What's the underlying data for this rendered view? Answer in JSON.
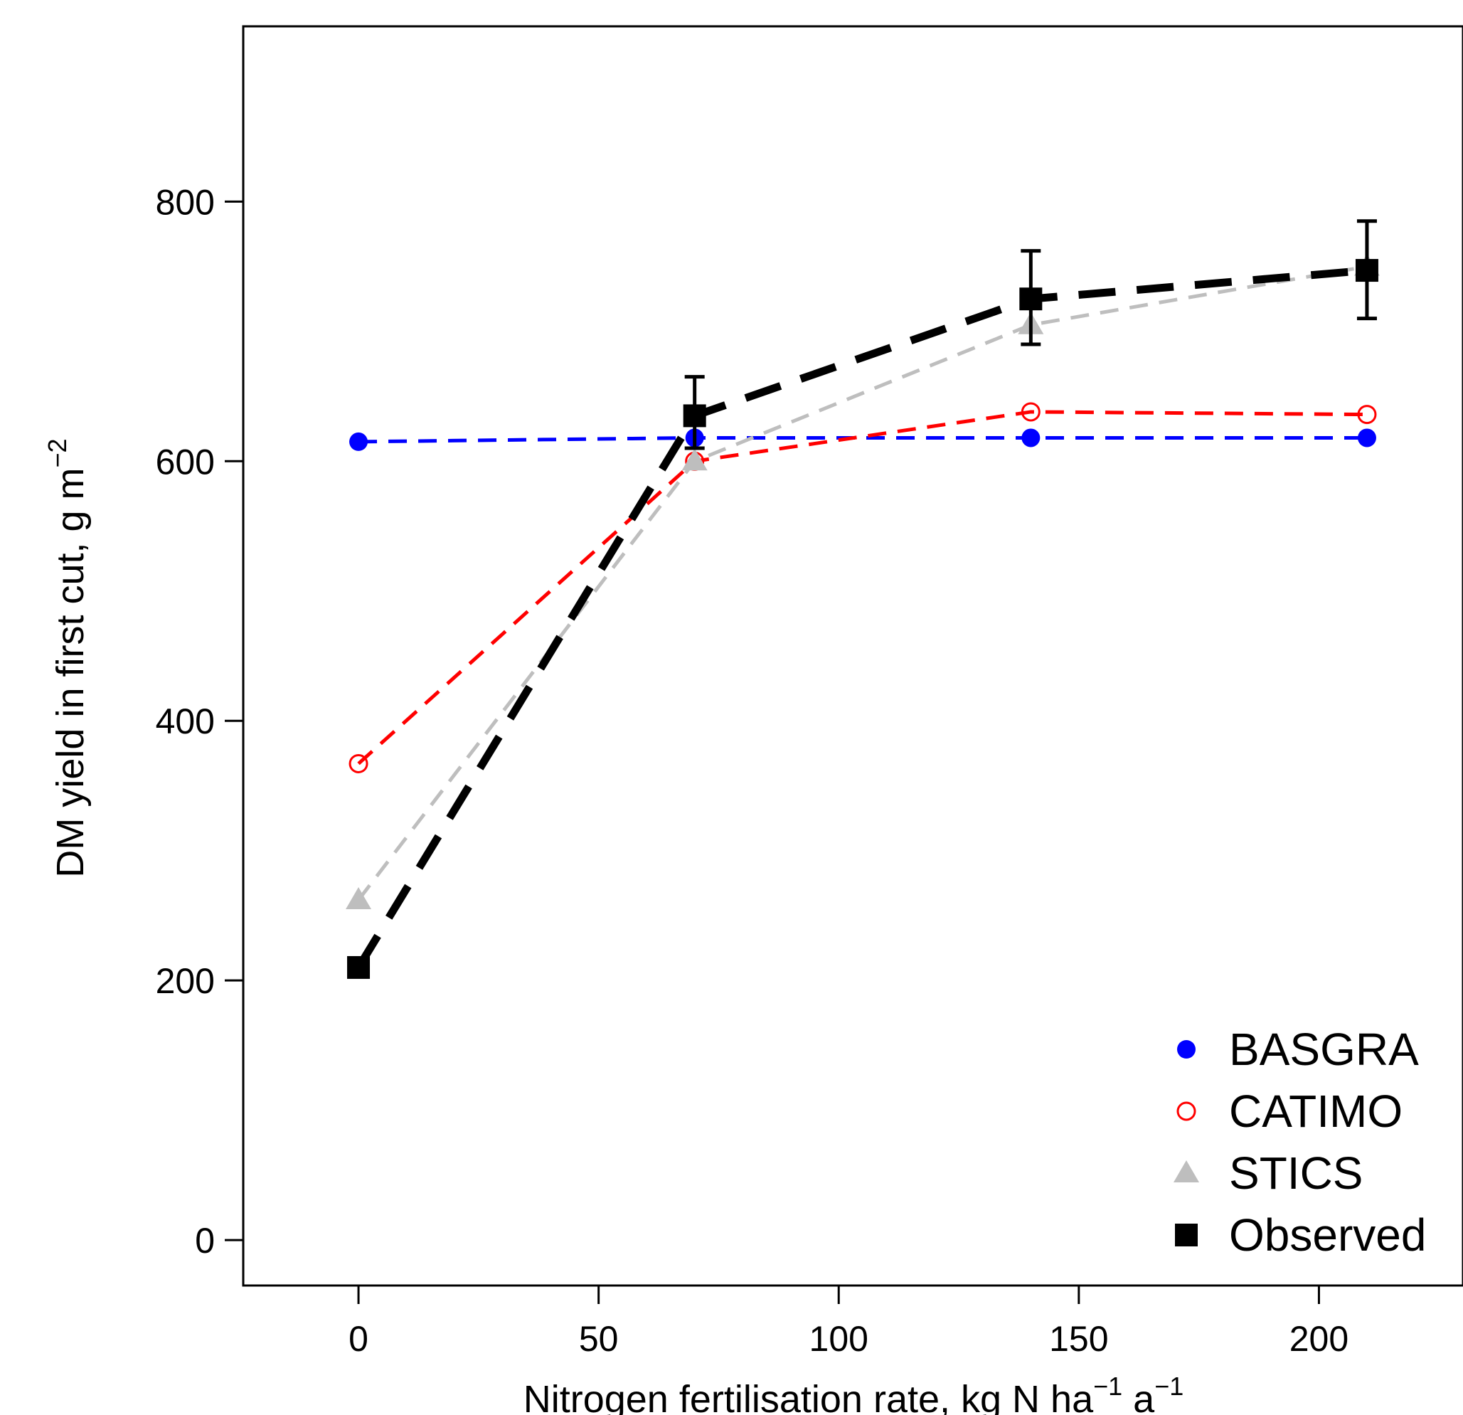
{
  "chart_data": {
    "type": "line",
    "title": "",
    "xlabel": {
      "text": "Nitrogen fertilisation rate, kg N  ha",
      "sup1": "−1",
      "mid": " a",
      "sup2": "−1"
    },
    "ylabel": {
      "text": "DM yield in first cut, g m",
      "sup": "−2"
    },
    "xlim": [
      -24,
      230
    ],
    "ylim": [
      -35,
      935
    ],
    "xticks": [
      0,
      50,
      100,
      150,
      200
    ],
    "yticks": [
      0,
      200,
      400,
      600,
      800
    ],
    "xtick_labels": [
      "0",
      "50",
      "100",
      "150",
      "200"
    ],
    "ytick_labels": [
      "0",
      "200",
      "400",
      "600",
      "800"
    ],
    "x": [
      0,
      70,
      140,
      210
    ],
    "legend_position": "bottom-right",
    "series": [
      {
        "name": "BASGRA",
        "values": [
          615,
          618,
          618,
          618
        ],
        "color": "#0000ff",
        "marker": "filled-circle",
        "line": "dashed"
      },
      {
        "name": "CATIMO",
        "values": [
          367,
          600,
          638,
          636
        ],
        "color": "#ff0000",
        "marker": "open-circle",
        "line": "dashed"
      },
      {
        "name": "STICS",
        "values": [
          262,
          600,
          705,
          750
        ],
        "color": "#bebebe",
        "marker": "filled-triangle",
        "line": "dashed"
      },
      {
        "name": "Observed",
        "values": [
          210,
          635,
          725,
          747
        ],
        "color": "#000000",
        "marker": "filled-square",
        "line": "thick-dashed",
        "error_low": [
          205,
          610,
          690,
          710
        ],
        "error_high": [
          215,
          665,
          762,
          785
        ]
      }
    ]
  }
}
